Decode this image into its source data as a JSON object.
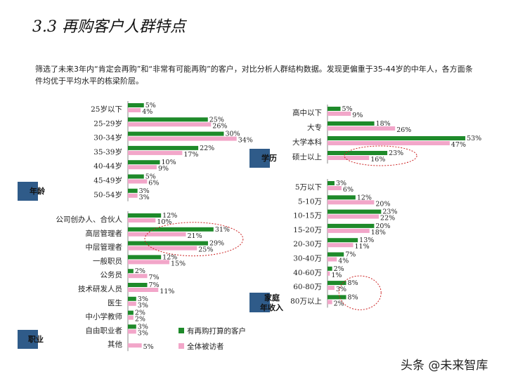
{
  "page": {
    "title": "3.3 再购客户人群特点",
    "description": "筛选了未来3年内“肯定会再购”和“非常有可能再购”的客户，对比分析人群结构数据。发现更偏重于35-44岁的中年人，各方面条件均优于平均水平的栋梁阶层。",
    "watermark": "头条 @未来智库"
  },
  "colors": {
    "repurchase": "#1e8a2a",
    "all": "#f2a6c9",
    "section_label_bg": "#2f5b89",
    "highlight_ring": "#cc2222"
  },
  "legend": {
    "repurchase": "有再购打算的客户",
    "all": "全体被访者"
  },
  "chart_data": [
    {
      "type": "bar",
      "orientation": "horizontal",
      "title": "年龄",
      "xlim": [
        0,
        55
      ],
      "categories": [
        "25岁以下",
        "25-29岁",
        "30-34岁",
        "35-39岁",
        "40-44岁",
        "45-49岁",
        "50-54岁"
      ],
      "series": [
        {
          "name": "有再购打算的客户",
          "values": [
            5,
            25,
            30,
            22,
            10,
            5,
            3
          ]
        },
        {
          "name": "全体被访者",
          "values": [
            4,
            26,
            34,
            17,
            9,
            6,
            3
          ]
        }
      ],
      "value_suffix": "%"
    },
    {
      "type": "bar",
      "orientation": "horizontal",
      "title": "职业",
      "xlim": [
        0,
        55
      ],
      "categories": [
        "公司创办人、合伙人",
        "高层管理者",
        "中层管理者",
        "一般职员",
        "公务员",
        "技术研发人员",
        "医生",
        "中小学教师",
        "自由职业者",
        "其他"
      ],
      "series": [
        {
          "name": "有再购打算的客户",
          "values": [
            12,
            31,
            29,
            12,
            2,
            7,
            3,
            2,
            3,
            null
          ]
        },
        {
          "name": "全体被访者",
          "values": [
            10,
            21,
            25,
            15,
            7,
            11,
            3,
            2,
            3,
            5
          ]
        }
      ],
      "value_suffix": "%",
      "highlight_categories": [
        "高层管理者",
        "中层管理者"
      ]
    },
    {
      "type": "bar",
      "orientation": "horizontal",
      "title": "学历",
      "xlim": [
        0,
        55
      ],
      "categories": [
        "高中以下",
        "大专",
        "大学本科",
        "硕士以上"
      ],
      "series": [
        {
          "name": "有再购打算的客户",
          "values": [
            5,
            18,
            53,
            23
          ]
        },
        {
          "name": "全体被访者",
          "values": [
            9,
            26,
            47,
            16
          ]
        }
      ],
      "value_suffix": "%",
      "highlight_categories": [
        "硕士以上"
      ]
    },
    {
      "type": "bar",
      "orientation": "horizontal",
      "title": "家庭年收入",
      "xlim": [
        0,
        55
      ],
      "categories": [
        "5万以下",
        "5-10万",
        "10-15万",
        "15-20万",
        "20-30万",
        "30-40万",
        "40-60万",
        "60-80万",
        "80万以上"
      ],
      "series": [
        {
          "name": "有再购打算的客户",
          "values": [
            3,
            12,
            23,
            20,
            13,
            7,
            2,
            8,
            8
          ]
        },
        {
          "name": "全体被访者",
          "values": [
            6,
            20,
            22,
            18,
            11,
            4,
            1,
            3,
            2
          ]
        }
      ],
      "value_suffix": "%",
      "highlight_categories": [
        "60-80万",
        "80万以上"
      ]
    }
  ]
}
